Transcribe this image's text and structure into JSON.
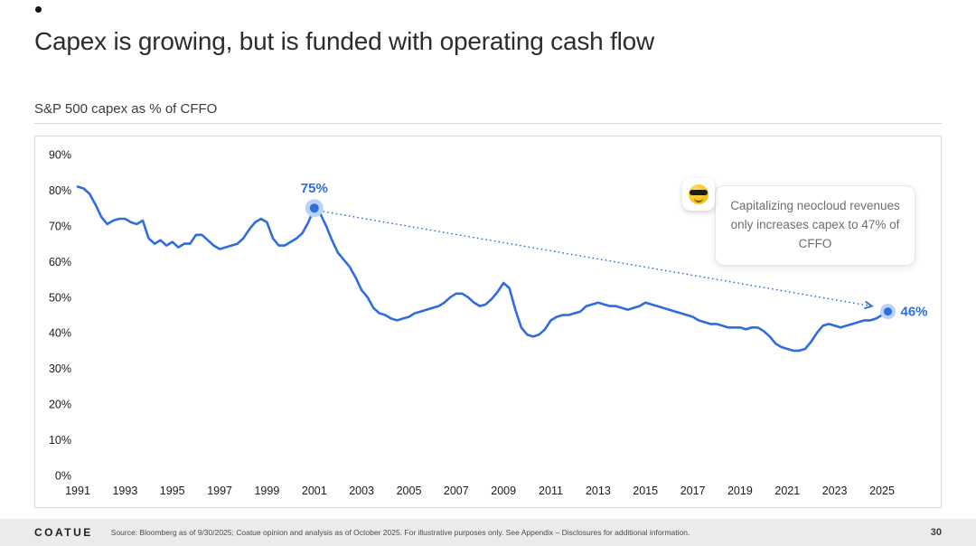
{
  "slide": {
    "title": "Capex is growing, but is funded with operating cash flow",
    "subtitle": "S&P 500 capex as % of CFFO",
    "logo": "COATUE",
    "source": "Source: Bloomberg as of 9/30/2025; Coatue opinion and analysis as of October 2025. For illustrative purposes only. See Appendix – Disclosures for additional information.",
    "page_number": "30"
  },
  "callout": {
    "emoji": "😎",
    "text": "Capitalizing neocloud revenues only increases capex to 47% of CFFO"
  },
  "colors": {
    "line": "#2e6ce0",
    "halo": "#b9d3f8",
    "label": "#2e6ce0",
    "tick": "#1a1a1a"
  },
  "chart_data": {
    "type": "line",
    "title": "S&P 500 capex as % of CFFO",
    "xlabel": "",
    "ylabel": "",
    "grid": false,
    "legend": false,
    "xlim": [
      1991,
      2025
    ],
    "ylim": [
      0,
      90
    ],
    "x_ticks": [
      1991,
      1993,
      1995,
      1997,
      1999,
      2001,
      2003,
      2005,
      2007,
      2009,
      2011,
      2013,
      2015,
      2017,
      2019,
      2021,
      2023,
      2025
    ],
    "y_ticks": [
      "0%",
      "10%",
      "20%",
      "30%",
      "40%",
      "50%",
      "60%",
      "70%",
      "80%",
      "90%"
    ],
    "series": [
      {
        "name": "S&P 500 capex as % of CFFO",
        "points": [
          [
            1991,
            81
          ],
          [
            1991.25,
            80.5
          ],
          [
            1991.5,
            79
          ],
          [
            1991.75,
            76
          ],
          [
            1992,
            72.5
          ],
          [
            1992.25,
            70.5
          ],
          [
            1992.5,
            71.5
          ],
          [
            1992.75,
            72
          ],
          [
            1993,
            72
          ],
          [
            1993.25,
            71
          ],
          [
            1993.5,
            70.5
          ],
          [
            1993.75,
            71.5
          ],
          [
            1994,
            66.5
          ],
          [
            1994.25,
            65
          ],
          [
            1994.5,
            66
          ],
          [
            1994.75,
            64.5
          ],
          [
            1995,
            65.5
          ],
          [
            1995.25,
            64
          ],
          [
            1995.5,
            65
          ],
          [
            1995.75,
            65
          ],
          [
            1996,
            67.5
          ],
          [
            1996.25,
            67.5
          ],
          [
            1996.5,
            66
          ],
          [
            1996.75,
            64.5
          ],
          [
            1997,
            63.5
          ],
          [
            1997.25,
            64
          ],
          [
            1997.5,
            64.5
          ],
          [
            1997.75,
            65
          ],
          [
            1998,
            66.5
          ],
          [
            1998.25,
            69
          ],
          [
            1998.5,
            71
          ],
          [
            1998.75,
            72
          ],
          [
            1999,
            71
          ],
          [
            1999.25,
            66.5
          ],
          [
            1999.5,
            64.5
          ],
          [
            1999.75,
            64.5
          ],
          [
            2000,
            65.5
          ],
          [
            2000.25,
            66.5
          ],
          [
            2000.5,
            68
          ],
          [
            2000.75,
            71
          ],
          [
            2001,
            75
          ],
          [
            2001.25,
            73.5
          ],
          [
            2001.5,
            70
          ],
          [
            2001.75,
            66
          ],
          [
            2002,
            62.5
          ],
          [
            2002.25,
            60.5
          ],
          [
            2002.5,
            58.5
          ],
          [
            2002.75,
            55.5
          ],
          [
            2003,
            52
          ],
          [
            2003.25,
            50
          ],
          [
            2003.5,
            47
          ],
          [
            2003.75,
            45.5
          ],
          [
            2004,
            45
          ],
          [
            2004.25,
            44
          ],
          [
            2004.5,
            43.5
          ],
          [
            2004.75,
            44
          ],
          [
            2005,
            44.5
          ],
          [
            2005.25,
            45.5
          ],
          [
            2005.5,
            46
          ],
          [
            2005.75,
            46.5
          ],
          [
            2006,
            47
          ],
          [
            2006.25,
            47.5
          ],
          [
            2006.5,
            48.5
          ],
          [
            2006.75,
            50
          ],
          [
            2007,
            51
          ],
          [
            2007.25,
            51
          ],
          [
            2007.5,
            50
          ],
          [
            2007.75,
            48.5
          ],
          [
            2008,
            47.5
          ],
          [
            2008.25,
            48
          ],
          [
            2008.5,
            49.5
          ],
          [
            2008.75,
            51.5
          ],
          [
            2009,
            54
          ],
          [
            2009.25,
            52.5
          ],
          [
            2009.5,
            46.5
          ],
          [
            2009.75,
            41.5
          ],
          [
            2010,
            39.5
          ],
          [
            2010.25,
            39
          ],
          [
            2010.5,
            39.5
          ],
          [
            2010.75,
            41
          ],
          [
            2011,
            43.5
          ],
          [
            2011.25,
            44.5
          ],
          [
            2011.5,
            45
          ],
          [
            2011.75,
            45
          ],
          [
            2012,
            45.5
          ],
          [
            2012.25,
            46
          ],
          [
            2012.5,
            47.5
          ],
          [
            2012.75,
            48
          ],
          [
            2013,
            48.5
          ],
          [
            2013.25,
            48
          ],
          [
            2013.5,
            47.5
          ],
          [
            2013.75,
            47.5
          ],
          [
            2014,
            47
          ],
          [
            2014.25,
            46.5
          ],
          [
            2014.5,
            47
          ],
          [
            2014.75,
            47.5
          ],
          [
            2015,
            48.5
          ],
          [
            2015.25,
            48
          ],
          [
            2015.5,
            47.5
          ],
          [
            2015.75,
            47
          ],
          [
            2016,
            46.5
          ],
          [
            2016.25,
            46
          ],
          [
            2016.5,
            45.5
          ],
          [
            2016.75,
            45
          ],
          [
            2017,
            44.5
          ],
          [
            2017.25,
            43.5
          ],
          [
            2017.5,
            43
          ],
          [
            2017.75,
            42.5
          ],
          [
            2018,
            42.5
          ],
          [
            2018.25,
            42
          ],
          [
            2018.5,
            41.5
          ],
          [
            2018.75,
            41.5
          ],
          [
            2019,
            41.5
          ],
          [
            2019.25,
            41
          ],
          [
            2019.5,
            41.5
          ],
          [
            2019.75,
            41.5
          ],
          [
            2020,
            40.5
          ],
          [
            2020.25,
            39
          ],
          [
            2020.5,
            37
          ],
          [
            2020.75,
            36
          ],
          [
            2021,
            35.5
          ],
          [
            2021.25,
            35
          ],
          [
            2021.5,
            35
          ],
          [
            2021.75,
            35.5
          ],
          [
            2022,
            37.5
          ],
          [
            2022.25,
            40
          ],
          [
            2022.5,
            42
          ],
          [
            2022.75,
            42.5
          ],
          [
            2023,
            42
          ],
          [
            2023.25,
            41.5
          ],
          [
            2023.5,
            42
          ],
          [
            2023.75,
            42.5
          ],
          [
            2024,
            43
          ],
          [
            2024.25,
            43.5
          ],
          [
            2024.5,
            43.5
          ],
          [
            2024.75,
            44
          ],
          [
            2025,
            45
          ],
          [
            2025.25,
            46
          ]
        ]
      }
    ],
    "annotations": {
      "peak": {
        "x": 2001,
        "y": 75,
        "label": "75%"
      },
      "end": {
        "x": 2025.25,
        "y": 46,
        "label": "46%"
      },
      "arrow": {
        "from": [
          2001.4,
          74
        ],
        "to": [
          2024.55,
          47.5
        ]
      }
    }
  }
}
